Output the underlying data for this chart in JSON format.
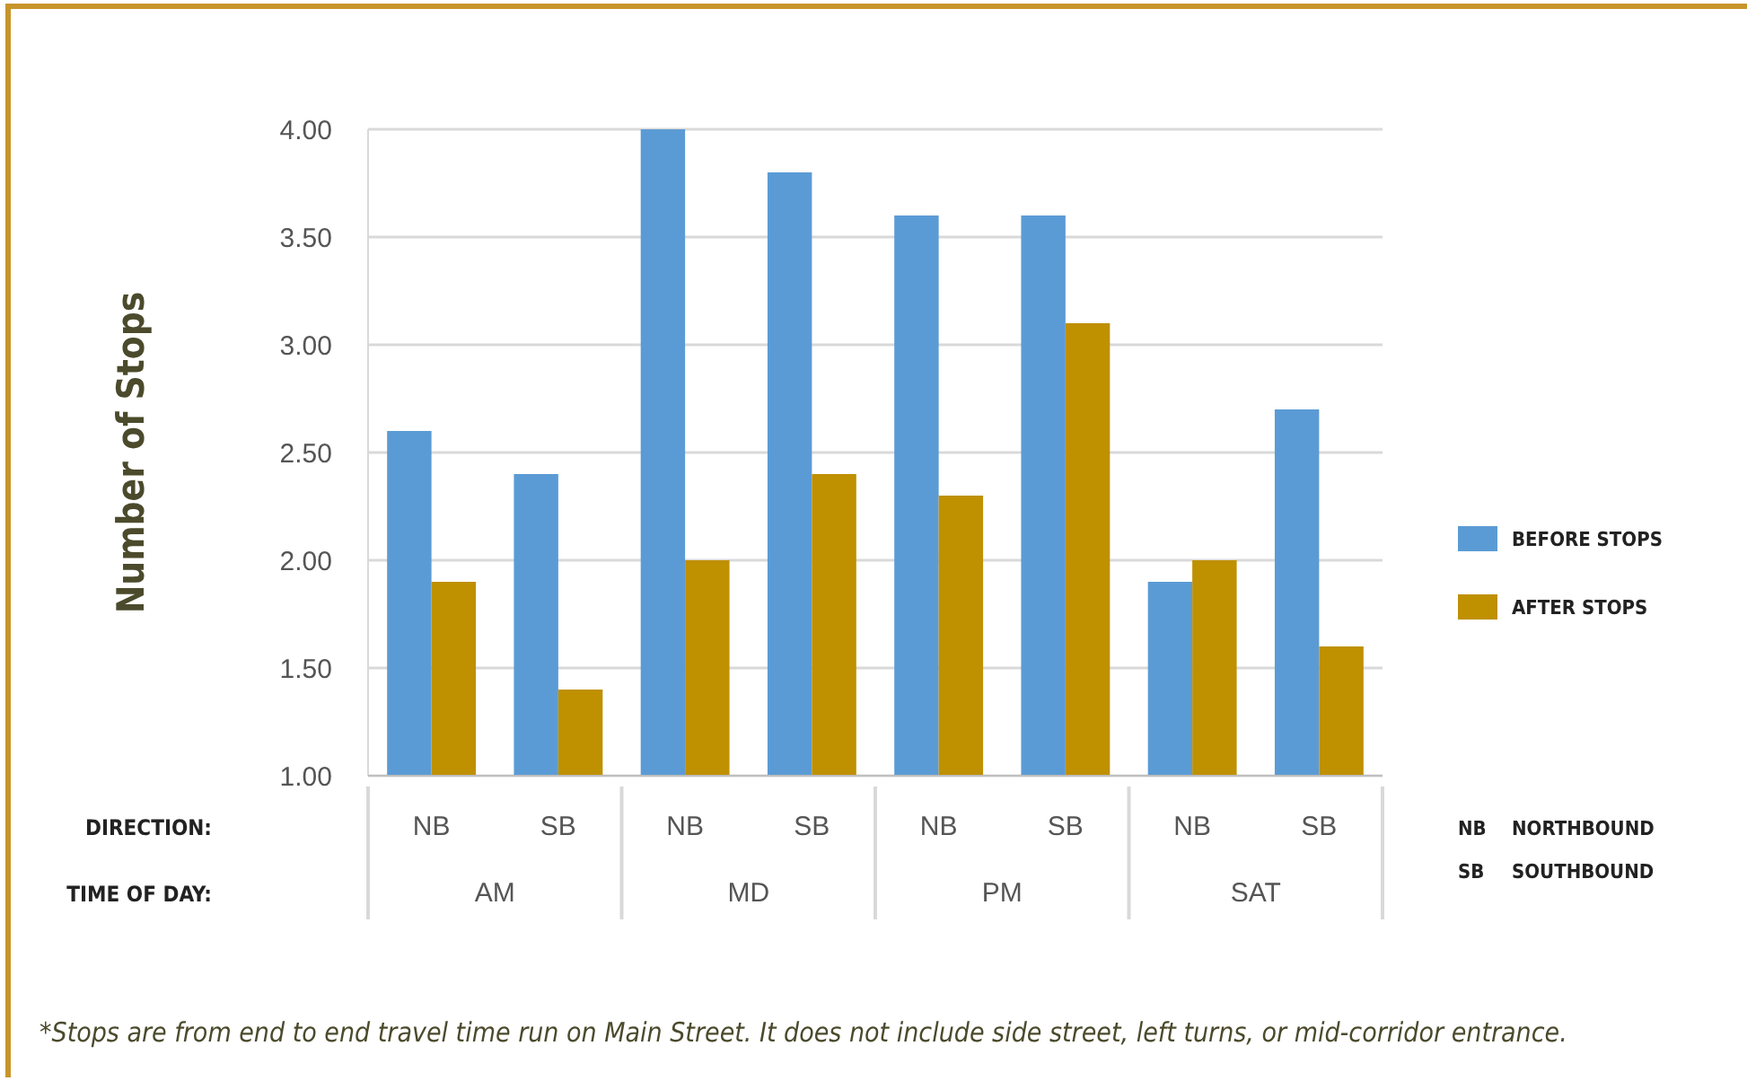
{
  "chart_data": {
    "type": "bar",
    "ylabel": "Number of Stops",
    "categories": [
      "NB",
      "SB",
      "NB",
      "SB",
      "NB",
      "SB",
      "NB",
      "SB"
    ],
    "series": [
      {
        "name": "BEFORE STOPS",
        "color": "#5b9bd5",
        "values": [
          2.6,
          2.4,
          4.0,
          3.8,
          3.6,
          3.6,
          1.9,
          2.7
        ]
      },
      {
        "name": "AFTER STOPS",
        "color": "#bf9000",
        "values": [
          1.9,
          1.4,
          2.0,
          2.4,
          2.3,
          3.1,
          2.0,
          1.6
        ]
      }
    ],
    "ylim": [
      1,
      4
    ],
    "yticks": [
      {
        "value": 1,
        "label": "1.00"
      },
      {
        "value": 1.5,
        "label": "1.50"
      },
      {
        "value": 2,
        "label": "2.00"
      },
      {
        "value": 2.5,
        "label": "2.50"
      },
      {
        "value": 3,
        "label": "3.00"
      },
      {
        "value": 3.5,
        "label": "3.50"
      },
      {
        "value": 4,
        "label": "4.00"
      }
    ],
    "grid": "y",
    "legend": "right",
    "annotations": [
      "DIRECTION:",
      "TIME OF DAY:",
      "AM",
      "MD",
      "PM",
      "SAT",
      "NB",
      "NORTHBOUND",
      "SB",
      "SOUTHBOUND",
      "*Stops are from end to end travel time run on Main Street. It does not include side street, left turns, or mid-corridor entrance."
    ]
  }
}
